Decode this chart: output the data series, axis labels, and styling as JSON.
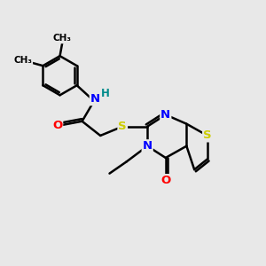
{
  "background_color": "#e8e8e8",
  "atom_colors": {
    "C": "#000000",
    "N": "#0000ff",
    "O": "#ff0000",
    "S": "#cccc00",
    "H": "#008b8b"
  },
  "bond_color": "#000000",
  "bond_width": 1.8,
  "figsize": [
    3.0,
    3.0
  ],
  "dpi": 100
}
